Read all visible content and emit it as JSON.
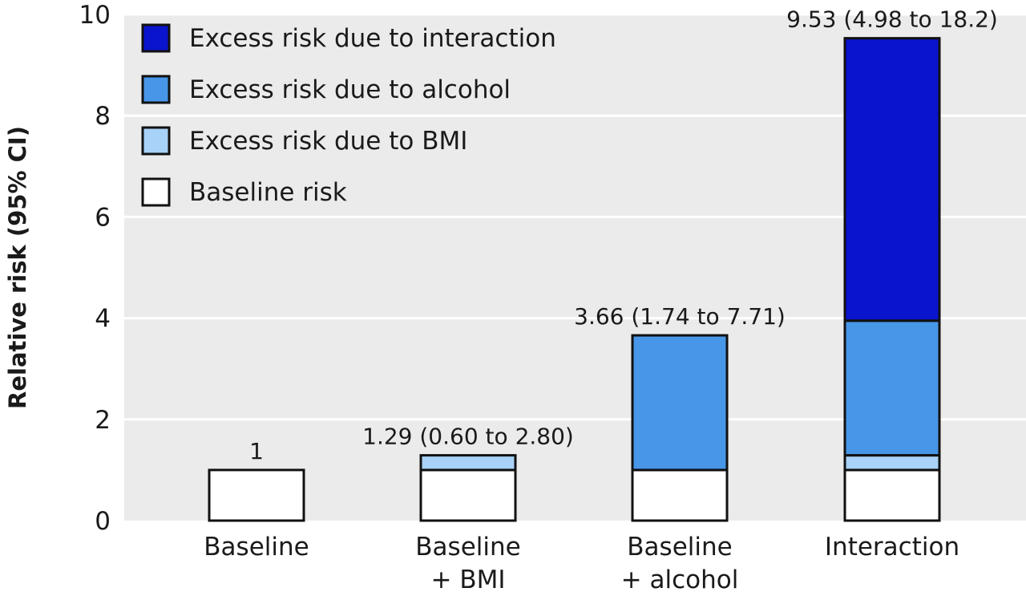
{
  "chart_data": {
    "type": "bar",
    "stacked": true,
    "title": "",
    "xlabel": "",
    "ylabel": "Relative risk (95% CI)",
    "ylim": [
      0,
      10
    ],
    "yticks": [
      0,
      2,
      4,
      6,
      8,
      10
    ],
    "grid": true,
    "legend_position": "top-left",
    "categories": [
      {
        "line1": "Baseline",
        "line2": ""
      },
      {
        "line1": "Baseline",
        "line2": "+ BMI"
      },
      {
        "line1": "Baseline",
        "line2": "+ alcohol"
      },
      {
        "line1": "Interaction",
        "line2": ""
      }
    ],
    "series": [
      {
        "name": "Baseline risk",
        "color": "#ffffff",
        "values": [
          1,
          1,
          1,
          1
        ]
      },
      {
        "name": "Excess risk due to BMI",
        "color": "#a8d2f7",
        "values": [
          0,
          0.29,
          0,
          0.29
        ]
      },
      {
        "name": "Excess risk due to alcohol",
        "color": "#4896e8",
        "values": [
          0,
          0,
          2.66,
          2.66
        ]
      },
      {
        "name": "Excess risk due to interaction",
        "color": "#0a14cc",
        "values": [
          0,
          0,
          0,
          5.58
        ]
      }
    ],
    "legend_order": [
      "Excess risk due to interaction",
      "Excess risk due to alcohol",
      "Excess risk due to BMI",
      "Baseline risk"
    ],
    "totals": [
      1,
      1.29,
      3.66,
      9.53
    ],
    "data_labels": [
      "1",
      "1.29 (0.60 to 2.80)",
      "3.66 (1.74 to 7.71)",
      "9.53 (4.98 to 18.2)"
    ],
    "plot_background": "#ebebeb",
    "grid_color": "#ffffff"
  }
}
